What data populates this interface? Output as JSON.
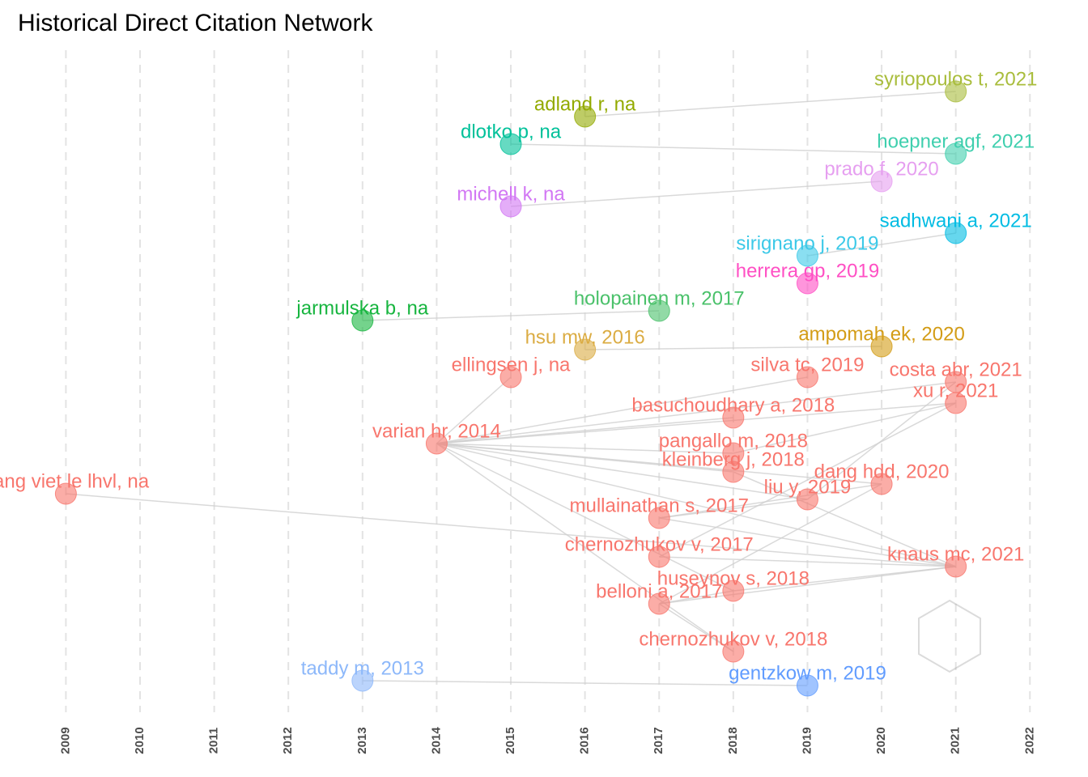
{
  "chart_data": {
    "type": "network",
    "title": "Historical Direct Citation Network",
    "xlim": [
      2008.33,
      2022.63
    ],
    "xticks": [
      2009,
      2010,
      2011,
      2012,
      2013,
      2014,
      2015,
      2016,
      2017,
      2018,
      2019,
      2020,
      2021,
      2022
    ],
    "grid": true,
    "nodes": [
      {
        "label": "syriopoulos t, 2021",
        "year": 2021,
        "color": "#a9bd3c"
      },
      {
        "label": "adland r, na",
        "year": 2016,
        "color": "#93aa00"
      },
      {
        "label": "dlotko p, na",
        "year": 2015,
        "color": "#00c19a"
      },
      {
        "label": "hoepner agf, 2021",
        "year": 2021,
        "color": "#3fcfae"
      },
      {
        "label": "prado f, 2020",
        "year": 2020,
        "color": "#e69ff0"
      },
      {
        "label": "michell k, na",
        "year": 2015,
        "color": "#d277f4"
      },
      {
        "label": "sadhwani a, 2021",
        "year": 2021,
        "color": "#00bce3"
      },
      {
        "label": "sirignano j, 2019",
        "year": 2019,
        "color": "#3cc9e8"
      },
      {
        "label": "herrera gp, 2019",
        "year": 2019,
        "color": "#ff4fc4"
      },
      {
        "label": "jarmulska b, na",
        "year": 2013,
        "color": "#17b53f"
      },
      {
        "label": "holopainen m, 2017",
        "year": 2017,
        "color": "#4ac16a"
      },
      {
        "label": "hsu mw, 2016",
        "year": 2016,
        "color": "#dbac43"
      },
      {
        "label": "ampomah ek, 2020",
        "year": 2020,
        "color": "#d39c16"
      },
      {
        "label": "ellingsen j, na",
        "year": 2015,
        "color": "#f8766d"
      },
      {
        "label": "varian hr, 2014",
        "year": 2014,
        "color": "#f8766d"
      },
      {
        "label": "dang viet le lhvl, na",
        "year": 2009,
        "color": "#f8766d"
      },
      {
        "label": "taddy m, 2013",
        "year": 2013,
        "color": "#8db8fa"
      },
      {
        "label": "gentzkow m, 2019",
        "year": 2019,
        "color": "#619cff"
      },
      {
        "label": "silva tc, 2019",
        "year": 2019,
        "color": "#f8766d"
      },
      {
        "label": "costa abr, 2021",
        "year": 2021,
        "color": "#f8766d"
      },
      {
        "label": "xu r, 2021",
        "year": 2021,
        "color": "#f8766d"
      },
      {
        "label": "basuchoudhary a, 2018",
        "year": 2018,
        "color": "#f8766d"
      },
      {
        "label": "pangallo m, 2018",
        "year": 2018,
        "color": "#f8766d"
      },
      {
        "label": "kleinberg j, 2018",
        "year": 2018,
        "color": "#f8766d"
      },
      {
        "label": "dang hdd, 2020",
        "year": 2020,
        "color": "#f8766d"
      },
      {
        "label": "liu y, 2019",
        "year": 2019,
        "color": "#f8766d"
      },
      {
        "label": "mullainathan s, 2017",
        "year": 2017,
        "color": "#f8766d"
      },
      {
        "label": "chernozhukov v, 2017",
        "year": 2017,
        "color": "#f8766d"
      },
      {
        "label": "knaus mc, 2021",
        "year": 2021,
        "color": "#f8766d"
      },
      {
        "label": "huseynov s, 2018",
        "year": 2018,
        "color": "#f8766d"
      },
      {
        "label": "belloni a, 2017",
        "year": 2017,
        "color": "#f8766d"
      },
      {
        "label": "chernozhukov v, 2018",
        "year": 2018,
        "color": "#f8766d"
      }
    ]
  }
}
